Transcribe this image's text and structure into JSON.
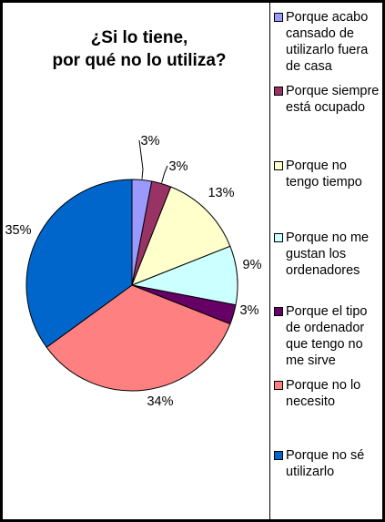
{
  "chart_data": {
    "type": "pie",
    "title_lines": [
      "¿Si lo tiene,",
      "por qué no lo utiliza?"
    ],
    "slices": [
      {
        "label": "Porque acabo cansado de utilizarlo fuera de casa",
        "value": 3,
        "value_label": "3%",
        "color": "#9999FF"
      },
      {
        "label": "Porque siempre está ocupado",
        "value": 3,
        "value_label": "3%",
        "color": "#993366"
      },
      {
        "label": "Porque no tengo tiempo",
        "value": 13,
        "value_label": "13%",
        "color": "#FFFFCC"
      },
      {
        "label": "Porque no me gustan los ordenadores",
        "value": 9,
        "value_label": "9%",
        "color": "#CCFFFF"
      },
      {
        "label": "Porque el tipo de ordenador que tengo no me sirve",
        "value": 3,
        "value_label": "3%",
        "color": "#660066"
      },
      {
        "label": "Porque no lo necesito",
        "value": 34,
        "value_label": "34%",
        "color": "#FF8080"
      },
      {
        "label": "Porque no sé utilizarlo",
        "value": 35,
        "value_label": "35%",
        "color": "#0066CC"
      }
    ],
    "legend_position": "right"
  }
}
